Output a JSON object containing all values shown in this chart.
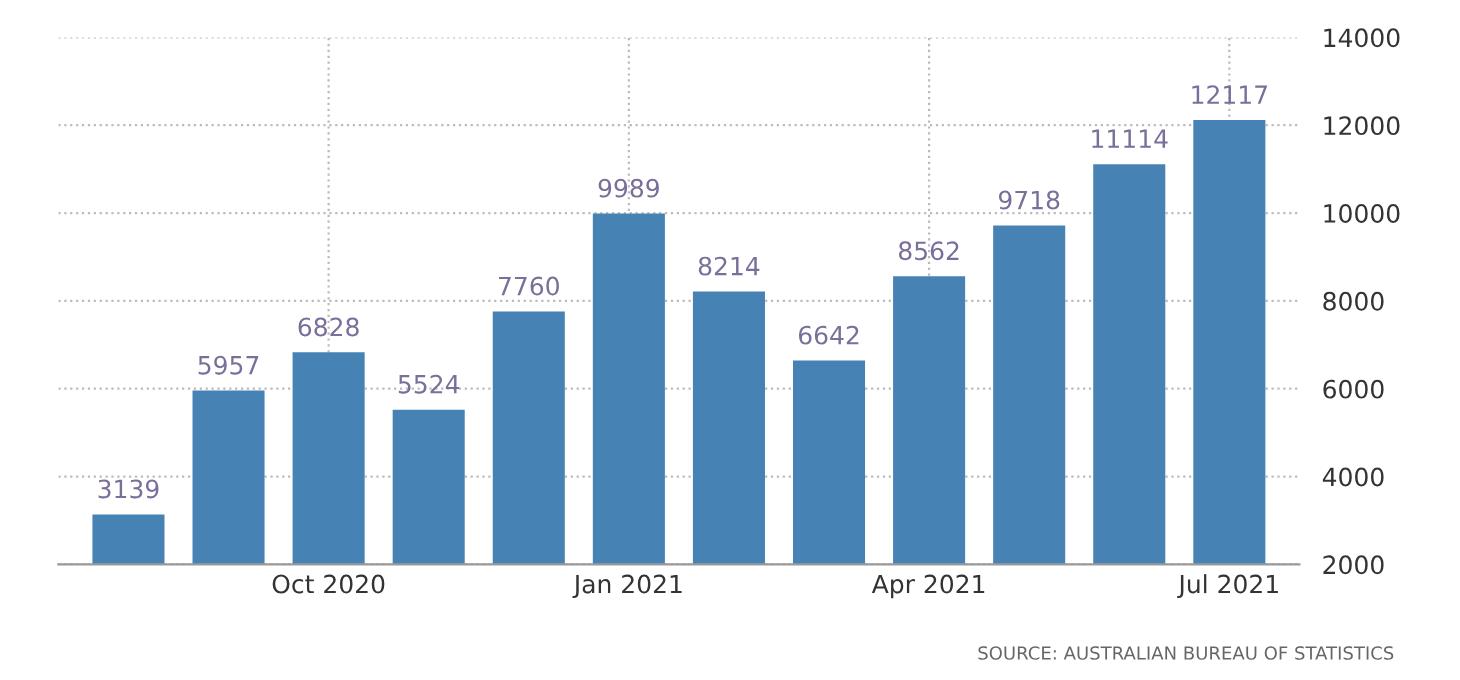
{
  "chart_data": {
    "type": "bar",
    "categories": [
      null,
      null,
      "Oct 2020",
      null,
      null,
      "Jan 2021",
      null,
      null,
      "Apr 2021",
      null,
      null,
      "Jul 2021"
    ],
    "values": [
      3139,
      5957,
      6828,
      5524,
      7760,
      9989,
      8214,
      6642,
      8562,
      9718,
      11114,
      12117
    ],
    "color": "#4682b4",
    "data_labels": true,
    "ylim": [
      2000,
      14000
    ],
    "yticks": [
      2000,
      4000,
      6000,
      8000,
      10000,
      12000,
      14000
    ],
    "grid": true,
    "annotations": [
      "SOURCE: AUSTRALIAN BUREAU OF STATISTICS"
    ]
  }
}
